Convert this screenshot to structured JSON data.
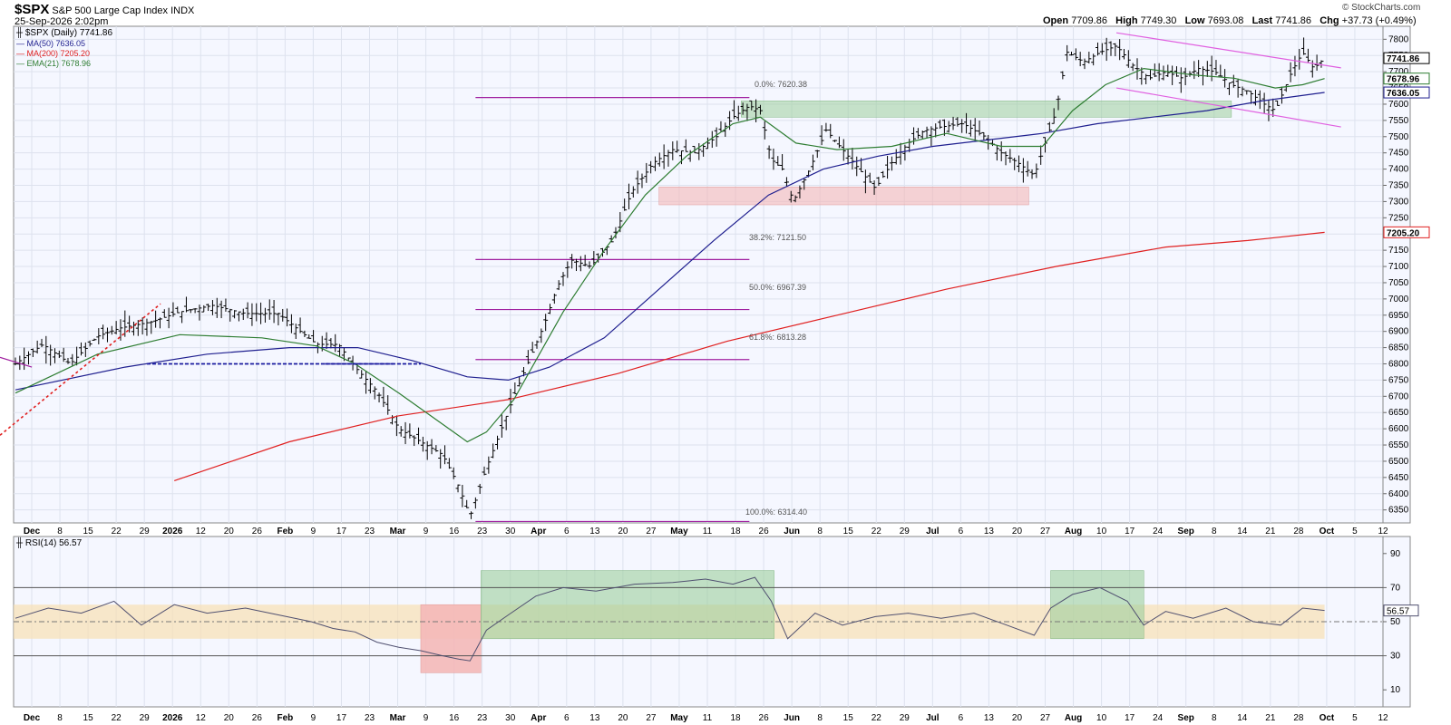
{
  "header": {
    "ticker": "$SPX",
    "name": "S&P 500 Large Cap Index",
    "exchange": "INDX",
    "datetime": "25-Sep-2026 2:02pm",
    "open_label": "Open",
    "open": "7709.86",
    "high_label": "High",
    "high": "7749.30",
    "low_label": "Low",
    "low": "7693.08",
    "last_label": "Last",
    "last": "7741.86",
    "chg_label": "Chg",
    "chg": "+37.73 (+0.49%)",
    "brand": "© StockCharts.com"
  },
  "legend": {
    "price": "$SPX (Daily) 7741.86",
    "ma50": "MA(50) 7636.05",
    "ma200": "MA(200) 7205.20",
    "ema21": "EMA(21) 7678.96"
  },
  "colors": {
    "price": "#000000",
    "ma50": "#1f1f8f",
    "ma200": "#e02020",
    "ema21": "#2e7d32",
    "fib": "#a020a0",
    "trendline": "#e060e0",
    "dotted_red": "#e02020",
    "dotted_blue": "#1a1aa0",
    "green_zone": "#9ccf9c",
    "red_zone": "#f4b8b8",
    "orange_zone": "#f8dfb4"
  },
  "fib_labels": [
    {
      "text": "0.0%: 7620.38",
      "value": 7620.38
    },
    {
      "text": "38.2%: 7121.50",
      "value": 7121.5
    },
    {
      "text": "50.0%: 6967.39",
      "value": 6967.39
    },
    {
      "text": "61.8%: 6813.28",
      "value": 6813.28
    },
    {
      "text": "100.0%: 6314.40",
      "value": 6314.4
    }
  ],
  "price_badges": {
    "last": "7741.86",
    "ema21": "7678.96",
    "ma50": "7636.05",
    "ma200": "7205.20"
  },
  "rsi": {
    "label": "RSI(14) 56.57",
    "badge": "56.57",
    "ticks": [
      "90",
      "70",
      "50",
      "30",
      "10"
    ]
  },
  "chart_data": {
    "type": "ohlc",
    "xaxis_labels": [
      "Dec",
      "8",
      "15",
      "22",
      "29",
      "2026",
      "12",
      "20",
      "26",
      "Feb",
      "9",
      "17",
      "23",
      "Mar",
      "9",
      "16",
      "23",
      "30",
      "Apr",
      "6",
      "13",
      "20",
      "27",
      "May",
      "11",
      "18",
      "26",
      "Jun",
      "8",
      "15",
      "22",
      "29",
      "Jul",
      "6",
      "13",
      "20",
      "27",
      "Aug",
      "10",
      "17",
      "24",
      "Sep",
      "8",
      "14",
      "21",
      "28",
      "Oct",
      "5",
      "12"
    ],
    "yaxis_ticks": [
      "7800",
      "7750",
      "7700",
      "7650",
      "7600",
      "7550",
      "7500",
      "7450",
      "7400",
      "7350",
      "7300",
      "7250",
      "7200",
      "7150",
      "7100",
      "7050",
      "7000",
      "6950",
      "6900",
      "6850",
      "6800",
      "6750",
      "6700",
      "6650",
      "6600",
      "6550",
      "6500",
      "6450",
      "6400",
      "6350"
    ],
    "ylim": [
      6310,
      7840
    ],
    "price_path": [
      [
        0,
        6800
      ],
      [
        10,
        6860
      ],
      [
        20,
        6800
      ],
      [
        30,
        6885
      ],
      [
        38,
        6910
      ],
      [
        50,
        6930
      ],
      [
        60,
        6960
      ],
      [
        72,
        6980
      ],
      [
        84,
        6955
      ],
      [
        96,
        6955
      ],
      [
        104,
        6900
      ],
      [
        110,
        6860
      ],
      [
        118,
        6860
      ],
      [
        124,
        6790
      ],
      [
        132,
        6715
      ],
      [
        140,
        6600
      ],
      [
        148,
        6560
      ],
      [
        156,
        6520
      ],
      [
        162,
        6420
      ],
      [
        166,
        6330
      ],
      [
        172,
        6480
      ],
      [
        177,
        6590
      ],
      [
        182,
        6700
      ],
      [
        188,
        6820
      ],
      [
        193,
        6920
      ],
      [
        198,
        7040
      ],
      [
        203,
        7120
      ],
      [
        210,
        7100
      ],
      [
        218,
        7180
      ],
      [
        225,
        7330
      ],
      [
        233,
        7420
      ],
      [
        240,
        7460
      ],
      [
        248,
        7450
      ],
      [
        256,
        7500
      ],
      [
        262,
        7560
      ],
      [
        268,
        7595
      ],
      [
        272,
        7580
      ],
      [
        276,
        7430
      ],
      [
        280,
        7400
      ],
      [
        284,
        7300
      ],
      [
        290,
        7400
      ],
      [
        296,
        7520
      ],
      [
        302,
        7460
      ],
      [
        308,
        7400
      ],
      [
        314,
        7340
      ],
      [
        320,
        7420
      ],
      [
        326,
        7480
      ],
      [
        332,
        7520
      ],
      [
        338,
        7530
      ],
      [
        346,
        7540
      ],
      [
        354,
        7500
      ],
      [
        360,
        7450
      ],
      [
        366,
        7420
      ],
      [
        372,
        7380
      ],
      [
        376,
        7480
      ],
      [
        380,
        7580
      ],
      [
        384,
        7760
      ],
      [
        390,
        7730
      ],
      [
        396,
        7760
      ],
      [
        402,
        7780
      ],
      [
        408,
        7720
      ],
      [
        414,
        7680
      ],
      [
        420,
        7700
      ],
      [
        426,
        7680
      ],
      [
        432,
        7710
      ],
      [
        438,
        7700
      ],
      [
        444,
        7660
      ],
      [
        450,
        7640
      ],
      [
        456,
        7600
      ],
      [
        460,
        7580
      ],
      [
        466,
        7700
      ],
      [
        470,
        7760
      ],
      [
        474,
        7710
      ],
      [
        478,
        7741.86
      ]
    ],
    "ema21_path": [
      [
        0,
        6710
      ],
      [
        30,
        6830
      ],
      [
        60,
        6890
      ],
      [
        90,
        6880
      ],
      [
        110,
        6855
      ],
      [
        124,
        6800
      ],
      [
        140,
        6710
      ],
      [
        155,
        6620
      ],
      [
        165,
        6560
      ],
      [
        172,
        6590
      ],
      [
        182,
        6690
      ],
      [
        200,
        6960
      ],
      [
        215,
        7150
      ],
      [
        230,
        7320
      ],
      [
        245,
        7440
      ],
      [
        262,
        7540
      ],
      [
        272,
        7560
      ],
      [
        285,
        7480
      ],
      [
        300,
        7460
      ],
      [
        320,
        7470
      ],
      [
        340,
        7510
      ],
      [
        360,
        7470
      ],
      [
        375,
        7470
      ],
      [
        386,
        7580
      ],
      [
        398,
        7660
      ],
      [
        412,
        7710
      ],
      [
        430,
        7690
      ],
      [
        445,
        7680
      ],
      [
        460,
        7650
      ],
      [
        470,
        7660
      ],
      [
        478,
        7678.96
      ]
    ],
    "ma50_path": [
      [
        0,
        6720
      ],
      [
        40,
        6790
      ],
      [
        70,
        6830
      ],
      [
        100,
        6850
      ],
      [
        125,
        6850
      ],
      [
        145,
        6810
      ],
      [
        165,
        6760
      ],
      [
        180,
        6750
      ],
      [
        195,
        6790
      ],
      [
        215,
        6880
      ],
      [
        235,
        7030
      ],
      [
        255,
        7180
      ],
      [
        275,
        7320
      ],
      [
        295,
        7400
      ],
      [
        315,
        7440
      ],
      [
        335,
        7470
      ],
      [
        355,
        7490
      ],
      [
        375,
        7510
      ],
      [
        395,
        7540
      ],
      [
        415,
        7560
      ],
      [
        435,
        7580
      ],
      [
        455,
        7610
      ],
      [
        478,
        7636.05
      ]
    ],
    "ma200_path": [
      [
        58,
        6440
      ],
      [
        100,
        6560
      ],
      [
        140,
        6640
      ],
      [
        180,
        6690
      ],
      [
        220,
        6770
      ],
      [
        260,
        6870
      ],
      [
        300,
        6950
      ],
      [
        340,
        7030
      ],
      [
        380,
        7100
      ],
      [
        420,
        7160
      ],
      [
        450,
        7180
      ],
      [
        478,
        7205.2
      ]
    ],
    "rsi_ylim": [
      0,
      100
    ],
    "rsi_path": [
      [
        0,
        52
      ],
      [
        12,
        58
      ],
      [
        24,
        55
      ],
      [
        36,
        62
      ],
      [
        46,
        48
      ],
      [
        58,
        60
      ],
      [
        70,
        55
      ],
      [
        84,
        58
      ],
      [
        96,
        54
      ],
      [
        108,
        50
      ],
      [
        116,
        46
      ],
      [
        124,
        44
      ],
      [
        132,
        38
      ],
      [
        140,
        35
      ],
      [
        148,
        33
      ],
      [
        156,
        30
      ],
      [
        162,
        28
      ],
      [
        166,
        27
      ],
      [
        172,
        45
      ],
      [
        180,
        54
      ],
      [
        190,
        65
      ],
      [
        200,
        70
      ],
      [
        212,
        68
      ],
      [
        226,
        72
      ],
      [
        240,
        73
      ],
      [
        252,
        75
      ],
      [
        262,
        72
      ],
      [
        270,
        76
      ],
      [
        276,
        62
      ],
      [
        282,
        40
      ],
      [
        292,
        55
      ],
      [
        302,
        48
      ],
      [
        314,
        53
      ],
      [
        326,
        55
      ],
      [
        338,
        52
      ],
      [
        350,
        55
      ],
      [
        362,
        48
      ],
      [
        372,
        42
      ],
      [
        378,
        58
      ],
      [
        386,
        66
      ],
      [
        396,
        70
      ],
      [
        406,
        62
      ],
      [
        412,
        48
      ],
      [
        420,
        56
      ],
      [
        430,
        52
      ],
      [
        442,
        58
      ],
      [
        452,
        50
      ],
      [
        462,
        48
      ],
      [
        470,
        58
      ],
      [
        478,
        56.57
      ]
    ],
    "fib_levels": [
      7620.38,
      7121.5,
      6967.39,
      6813.28,
      6314.4
    ],
    "green_zone": {
      "from_x": 265,
      "to_x": 444,
      "ymin": 7560,
      "ymax": 7610
    },
    "red_zone": {
      "from_x": 235,
      "to_x": 370,
      "ymin": 7290,
      "ymax": 7345
    },
    "dotted_support": 6800,
    "rsi_levels": [
      70,
      50,
      30
    ]
  }
}
